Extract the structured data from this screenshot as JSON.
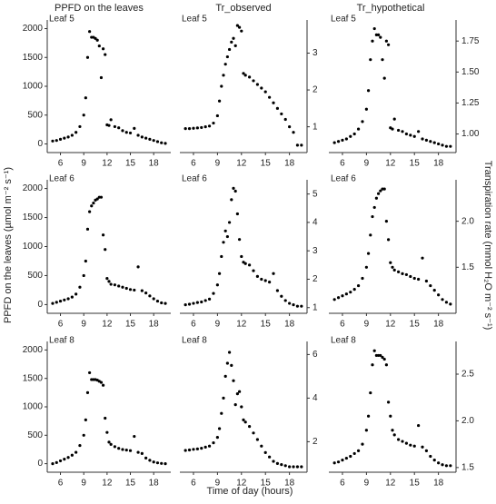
{
  "column_titles": [
    "PPFD on the leaves",
    "Tr_observed",
    "Tr_hypothetical"
  ],
  "xlabel": "Time of day (hours)",
  "ylabel_left": "PPFD on the leaves (µmol m⁻² s⁻¹)",
  "ylabel_right": "Transpiration rate (mmol H₂O m⁻² s⁻¹)",
  "chart_data": [
    {
      "type": "scatter",
      "label": "Leaf 5",
      "color": "#000000",
      "yaxis_side": "left",
      "x": [
        5,
        5.5,
        6,
        6.5,
        7,
        7.5,
        8,
        8.5,
        9,
        9.25,
        9.5,
        9.75,
        10,
        10.25,
        10.5,
        10.75,
        11,
        11.25,
        11.5,
        11.75,
        12,
        12.25,
        12.5,
        13,
        13.5,
        14,
        14.5,
        15,
        15.5,
        16,
        16.5,
        17,
        17.5,
        18,
        18.5,
        19,
        19.5
      ],
      "values": [
        50,
        60,
        80,
        100,
        120,
        150,
        200,
        300,
        500,
        800,
        1500,
        1950,
        1850,
        1850,
        1830,
        1800,
        1700,
        1150,
        1650,
        1550,
        330,
        320,
        420,
        300,
        280,
        230,
        200,
        190,
        270,
        150,
        120,
        100,
        80,
        60,
        40,
        20,
        10
      ],
      "xlim": [
        4.3,
        20.2
      ],
      "xticks": [
        6,
        9,
        12,
        15,
        18
      ],
      "ylim": [
        -150,
        2150
      ],
      "yticks": [
        0,
        500,
        1000,
        1500,
        2000
      ]
    },
    {
      "type": "scatter",
      "label": "Leaf 5",
      "color": "#000000",
      "yaxis_side": "right",
      "x": [
        5,
        5.5,
        6,
        6.5,
        7,
        7.5,
        8,
        8.5,
        9,
        9.25,
        9.5,
        9.75,
        10,
        10.25,
        10.5,
        10.75,
        11,
        11.25,
        11.5,
        11.75,
        12,
        12.25,
        12.5,
        13,
        13.5,
        14,
        14.5,
        15,
        15.5,
        16,
        16.5,
        17,
        17.5,
        18,
        18.5,
        19,
        19.5
      ],
      "values": [
        0.95,
        0.95,
        0.96,
        0.97,
        0.98,
        1.0,
        1.02,
        1.1,
        1.3,
        1.7,
        2.1,
        2.4,
        2.7,
        2.9,
        3.1,
        3.3,
        3.4,
        3.2,
        3.75,
        3.7,
        3.6,
        2.45,
        2.4,
        2.35,
        2.25,
        2.15,
        2.05,
        1.95,
        1.8,
        1.65,
        1.5,
        1.35,
        1.2,
        1.0,
        0.85,
        0.5,
        0.5
      ],
      "xlim": [
        4.3,
        20.2
      ],
      "xticks": [
        6,
        9,
        12,
        15,
        18
      ],
      "ylim": [
        0.3,
        3.9
      ],
      "yticks": [
        1,
        2,
        3
      ]
    },
    {
      "type": "scatter",
      "label": "Leaf 5",
      "color": "#000000",
      "yaxis_side": "right",
      "x": [
        5,
        5.5,
        6,
        6.5,
        7,
        7.5,
        8,
        8.5,
        9,
        9.25,
        9.5,
        9.75,
        10,
        10.25,
        10.5,
        10.75,
        11,
        11.25,
        11.5,
        11.75,
        12,
        12.25,
        12.5,
        13,
        13.5,
        14,
        14.5,
        15,
        15.5,
        16,
        16.5,
        17,
        17.5,
        18,
        18.5,
        19,
        19.5
      ],
      "values": [
        0.93,
        0.94,
        0.95,
        0.96,
        0.98,
        1.0,
        1.04,
        1.1,
        1.2,
        1.35,
        1.6,
        1.75,
        1.85,
        1.8,
        1.8,
        1.78,
        1.6,
        1.45,
        1.75,
        1.72,
        1.05,
        1.04,
        1.12,
        1.03,
        1.02,
        1.0,
        0.99,
        0.98,
        1.02,
        0.96,
        0.95,
        0.94,
        0.93,
        0.92,
        0.91,
        0.9,
        0.9
      ],
      "xlim": [
        4.3,
        20.2
      ],
      "xticks": [
        6,
        9,
        12,
        15,
        18
      ],
      "ylim": [
        0.85,
        1.92
      ],
      "yticks": [
        {
          "value": 1,
          "label": "1.00"
        },
        1.25,
        {
          "value": 1.5,
          "label": "1.50"
        },
        1.75
      ]
    },
    {
      "type": "scatter",
      "label": "Leaf 6",
      "color": "#000000",
      "yaxis_side": "left",
      "x": [
        5,
        5.5,
        6,
        6.5,
        7,
        7.5,
        8,
        8.5,
        9,
        9.25,
        9.5,
        9.75,
        10,
        10.25,
        10.5,
        10.75,
        11,
        11.25,
        11.5,
        11.75,
        12,
        12.25,
        12.5,
        13,
        13.5,
        14,
        14.5,
        15,
        15.5,
        16,
        16.5,
        17,
        17.5,
        18,
        18.5,
        19,
        19.5
      ],
      "values": [
        20,
        40,
        60,
        80,
        100,
        130,
        180,
        300,
        500,
        750,
        1300,
        1600,
        1700,
        1750,
        1800,
        1820,
        1850,
        1850,
        1200,
        950,
        450,
        400,
        350,
        340,
        320,
        300,
        280,
        260,
        250,
        650,
        240,
        200,
        150,
        100,
        60,
        30,
        20
      ],
      "xlim": [
        4.3,
        20.2
      ],
      "xticks": [
        6,
        9,
        12,
        15,
        18
      ],
      "ylim": [
        -150,
        2150
      ],
      "yticks": [
        0,
        500,
        1000,
        1500,
        2000
      ]
    },
    {
      "type": "scatter",
      "label": "Leaf 6",
      "color": "#000000",
      "yaxis_side": "right",
      "x": [
        5,
        5.5,
        6,
        6.5,
        7,
        7.5,
        8,
        8.5,
        9,
        9.25,
        9.5,
        9.75,
        10,
        10.25,
        10.5,
        10.75,
        11,
        11.25,
        11.5,
        11.75,
        12,
        12.25,
        12.5,
        13,
        13.5,
        14,
        14.5,
        15,
        15.5,
        16,
        16.5,
        17,
        17.5,
        18,
        18.5,
        19,
        19.5
      ],
      "values": [
        1.1,
        1.12,
        1.15,
        1.18,
        1.2,
        1.25,
        1.3,
        1.5,
        1.8,
        2.2,
        2.8,
        3.3,
        3.7,
        3.5,
        4.0,
        4.8,
        5.2,
        5.1,
        4.3,
        3.4,
        2.8,
        2.6,
        2.55,
        2.5,
        2.3,
        2.1,
        2.0,
        1.95,
        1.9,
        2.2,
        1.6,
        1.4,
        1.25,
        1.15,
        1.1,
        1.05,
        1.05
      ],
      "xlim": [
        4.3,
        20.2
      ],
      "xticks": [
        6,
        9,
        12,
        15,
        18
      ],
      "ylim": [
        0.8,
        5.5
      ],
      "yticks": [
        1,
        2,
        3,
        4,
        5
      ]
    },
    {
      "type": "scatter",
      "label": "Leaf 6",
      "color": "#000000",
      "yaxis_side": "right",
      "x": [
        5,
        5.5,
        6,
        6.5,
        7,
        7.5,
        8,
        8.5,
        9,
        9.25,
        9.5,
        9.75,
        10,
        10.25,
        10.5,
        10.75,
        11,
        11.25,
        11.5,
        11.75,
        12,
        12.25,
        12.5,
        13,
        13.5,
        14,
        14.5,
        15,
        15.5,
        16,
        16.5,
        17,
        17.5,
        18,
        18.5,
        19,
        19.5
      ],
      "values": [
        1.15,
        1.17,
        1.19,
        1.21,
        1.23,
        1.26,
        1.3,
        1.38,
        1.5,
        1.65,
        1.85,
        2.05,
        2.15,
        2.25,
        2.3,
        2.33,
        2.35,
        2.35,
        2.0,
        1.8,
        1.55,
        1.5,
        1.47,
        1.45,
        1.43,
        1.42,
        1.4,
        1.38,
        1.37,
        1.6,
        1.35,
        1.3,
        1.25,
        1.2,
        1.15,
        1.12,
        1.1
      ],
      "xlim": [
        4.3,
        20.2
      ],
      "xticks": [
        6,
        9,
        12,
        15,
        18
      ],
      "ylim": [
        1.0,
        2.45
      ],
      "yticks": [
        1.5,
        {
          "value": 2,
          "label": "2.0"
        }
      ]
    },
    {
      "type": "scatter",
      "label": "Leaf 8",
      "color": "#000000",
      "yaxis_side": "left",
      "x": [
        5,
        5.5,
        6,
        6.5,
        7,
        7.5,
        8,
        8.5,
        9,
        9.25,
        9.5,
        9.75,
        10,
        10.25,
        10.5,
        10.75,
        11,
        11.25,
        11.5,
        11.75,
        12,
        12.25,
        12.5,
        13,
        13.5,
        14,
        14.5,
        15,
        15.5,
        16,
        16.5,
        17,
        17.5,
        18,
        18.5,
        19,
        19.5
      ],
      "values": [
        0,
        20,
        50,
        80,
        110,
        150,
        200,
        320,
        500,
        770,
        1250,
        1600,
        1480,
        1480,
        1480,
        1470,
        1450,
        1430,
        1380,
        800,
        550,
        380,
        340,
        300,
        270,
        250,
        240,
        230,
        480,
        200,
        180,
        100,
        60,
        30,
        15,
        5,
        0
      ],
      "xlim": [
        4.3,
        20.2
      ],
      "xticks": [
        6,
        9,
        12,
        15,
        18
      ],
      "ylim": [
        -150,
        2150
      ],
      "yticks": [
        0,
        500,
        1000,
        1500,
        2000
      ]
    },
    {
      "type": "scatter",
      "label": "Leaf 8",
      "color": "#000000",
      "yaxis_side": "right",
      "x": [
        5,
        5.5,
        6,
        6.5,
        7,
        7.5,
        8,
        8.5,
        9,
        9.25,
        9.5,
        9.75,
        10,
        10.25,
        10.5,
        10.75,
        11,
        11.25,
        11.5,
        11.75,
        12,
        12.25,
        12.5,
        13,
        13.5,
        14,
        14.5,
        15,
        15.5,
        16,
        16.5,
        17,
        17.5,
        18,
        18.5,
        19,
        19.5
      ],
      "values": [
        1.6,
        1.62,
        1.65,
        1.67,
        1.7,
        1.75,
        1.8,
        1.95,
        2.2,
        2.6,
        3.3,
        4.0,
        5.0,
        5.6,
        6.1,
        5.5,
        4.8,
        3.7,
        4.2,
        4.3,
        3.6,
        3.0,
        2.9,
        2.7,
        2.4,
        2.1,
        1.8,
        1.5,
        1.3,
        1.1,
        1.0,
        0.95,
        0.9,
        0.85,
        0.85,
        0.85,
        0.85
      ],
      "xlim": [
        4.3,
        20.2
      ],
      "xticks": [
        6,
        9,
        12,
        15,
        18
      ],
      "ylim": [
        0.6,
        6.6
      ],
      "yticks": [
        2,
        4,
        6
      ]
    },
    {
      "type": "scatter",
      "label": "Leaf 8",
      "color": "#000000",
      "yaxis_side": "right",
      "x": [
        5,
        5.5,
        6,
        6.5,
        7,
        7.5,
        8,
        8.5,
        9,
        9.25,
        9.5,
        9.75,
        10,
        10.25,
        10.5,
        10.75,
        11,
        11.25,
        11.5,
        11.75,
        12,
        12.25,
        12.5,
        13,
        13.5,
        14,
        14.5,
        15,
        15.5,
        16,
        16.5,
        17,
        17.5,
        18,
        18.5,
        19,
        19.5
      ],
      "values": [
        1.55,
        1.56,
        1.58,
        1.6,
        1.62,
        1.65,
        1.68,
        1.75,
        1.9,
        2.05,
        2.3,
        2.6,
        2.75,
        2.7,
        2.7,
        2.7,
        2.68,
        2.66,
        2.6,
        2.2,
        2.05,
        1.9,
        1.85,
        1.8,
        1.78,
        1.76,
        1.74,
        1.73,
        1.95,
        1.72,
        1.68,
        1.62,
        1.58,
        1.55,
        1.53,
        1.52,
        1.52
      ],
      "xlim": [
        4.3,
        20.2
      ],
      "xticks": [
        6,
        9,
        12,
        15,
        18
      ],
      "ylim": [
        1.45,
        2.85
      ],
      "yticks": [
        1.5,
        {
          "value": 2,
          "label": "2.0"
        },
        2.5
      ]
    }
  ]
}
